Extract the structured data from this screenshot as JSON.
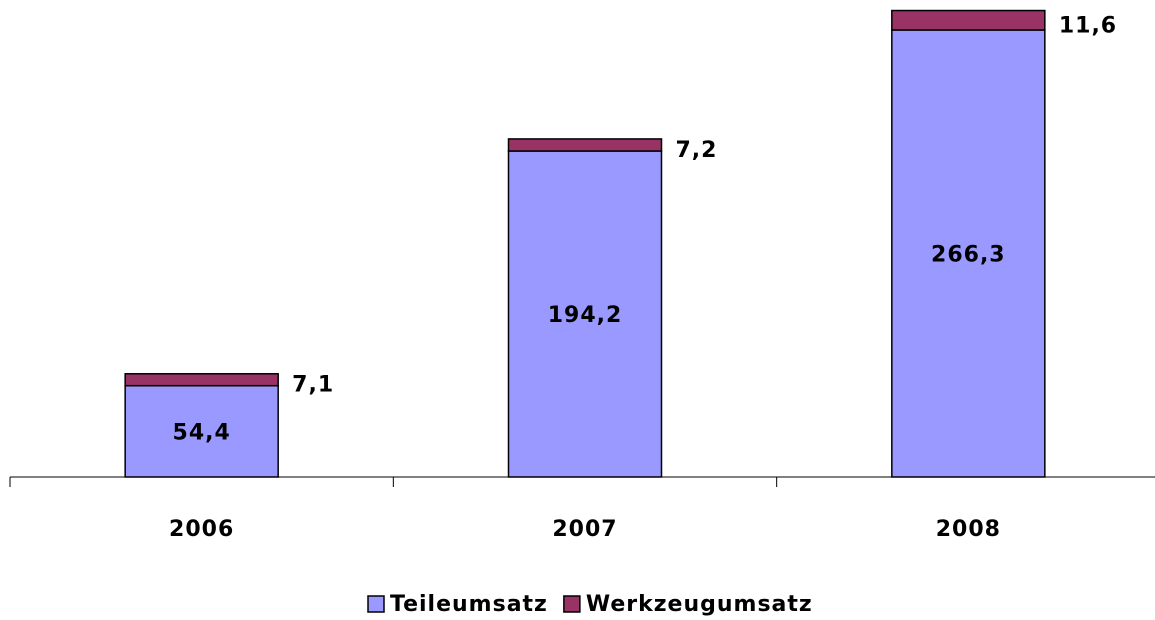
{
  "chart_data": {
    "type": "stacked_bar",
    "categories": [
      "2006",
      "2007",
      "2008"
    ],
    "series": [
      {
        "name": "Teileumsatz",
        "color": "#9999ff",
        "values": [
          54.4,
          194.2,
          266.3
        ],
        "value_labels": [
          "54,4",
          "194,2",
          "266,3"
        ]
      },
      {
        "name": "Werkzeugumsatz",
        "color": "#993366",
        "values": [
          7.1,
          7.2,
          11.6
        ],
        "value_labels": [
          "7,1",
          "7,2",
          "11,6"
        ]
      }
    ],
    "ylim": [
      0,
      280
    ]
  }
}
